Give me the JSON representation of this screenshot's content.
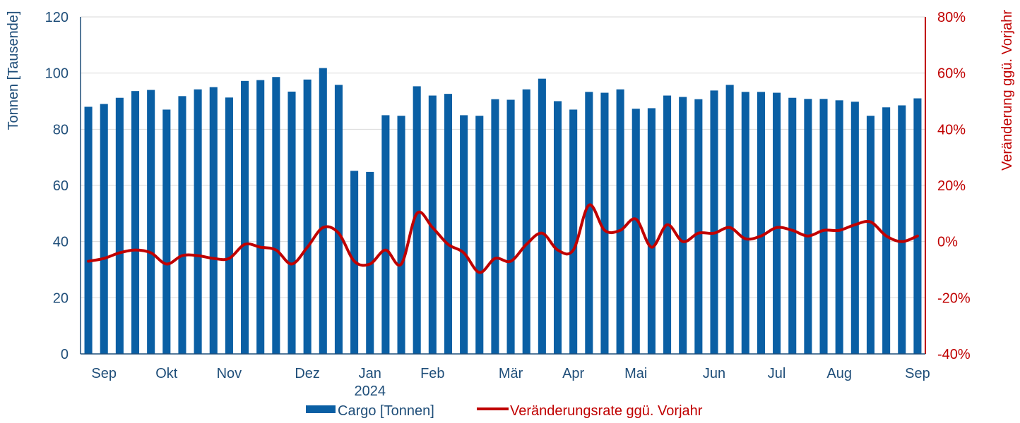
{
  "chart_data": {
    "type": "bar",
    "bar_series": {
      "name": "Cargo [Tonnen]",
      "color": "#0a5fa4",
      "values": [
        88,
        89,
        91.2,
        93.6,
        94.0,
        87.0,
        91.8,
        94.2,
        95.0,
        91.3,
        97.2,
        97.5,
        98.6,
        93.4,
        97.7,
        101.8,
        95.8,
        65.2,
        64.8,
        85.0,
        84.8,
        95.3,
        92.0,
        92.6,
        85.0,
        84.8,
        90.7,
        90.5,
        94.2,
        98.0,
        90.0,
        87.0,
        93.3,
        93.0,
        94.2,
        87.3,
        87.5,
        92.0,
        91.5,
        90.7,
        93.8,
        95.8,
        93.3,
        93.3,
        93.0,
        91.2,
        90.8,
        90.8,
        90.3,
        89.8,
        84.8,
        87.8,
        88.5,
        91.0
      ]
    },
    "line_series": {
      "name": "Veränderungsrate ggü. Vorjahr",
      "color": "#c00000",
      "values": [
        -7,
        -6,
        -4,
        -3,
        -4,
        -8,
        -5,
        -5,
        -6,
        -6,
        -1,
        -2,
        -3,
        -8,
        -2,
        5,
        3,
        -7,
        -8,
        -3,
        -8,
        10,
        5,
        -1,
        -4,
        -11,
        -6,
        -7,
        -1,
        3,
        -3,
        -3,
        13,
        4,
        4,
        8,
        -2,
        6,
        0,
        3,
        3,
        5,
        1,
        2,
        5,
        4,
        2,
        4,
        4,
        6,
        7,
        2,
        0,
        2
      ]
    },
    "x_tick_labels": [
      {
        "label": "Sep",
        "bar": 1
      },
      {
        "label": "Okt",
        "bar": 5
      },
      {
        "label": "Nov",
        "bar": 9
      },
      {
        "label": "Dez",
        "bar": 14
      },
      {
        "label": "Jan",
        "bar": 18
      },
      {
        "label": "Feb",
        "bar": 22
      },
      {
        "label": "Mär",
        "bar": 27
      },
      {
        "label": "Apr",
        "bar": 31
      },
      {
        "label": "Mai",
        "bar": 35
      },
      {
        "label": "Jun",
        "bar": 40
      },
      {
        "label": "Jul",
        "bar": 44
      },
      {
        "label": "Aug",
        "bar": 48
      },
      {
        "label": "Sep",
        "bar": 53
      }
    ],
    "year_label": "2024",
    "ylabel_left": "Tonnen [Tausende]",
    "ylabel_right": "Veränderung ggü. Vorjahr",
    "ylim_left": [
      0,
      120
    ],
    "ylim_right": [
      -40,
      80
    ],
    "left_ticks": [
      "0",
      "20",
      "40",
      "60",
      "80",
      "100",
      "120"
    ],
    "right_ticks": [
      "-40%",
      "-20%",
      "0%",
      "20%",
      "40%",
      "60%",
      "80%"
    ],
    "grid": true,
    "legend_position": "bottom"
  }
}
